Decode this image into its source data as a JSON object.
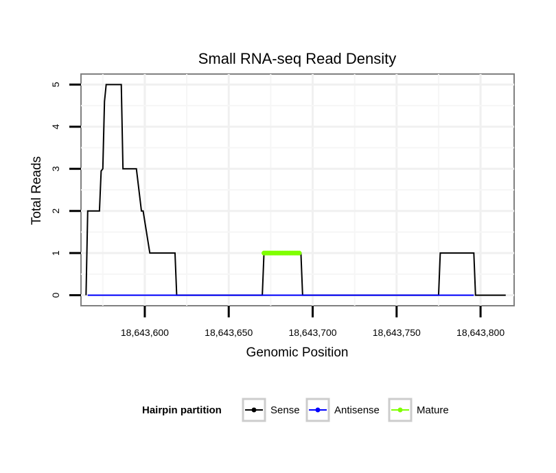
{
  "chart_data": {
    "type": "line",
    "title": "Small RNA-seq Read Density",
    "xlabel": "Genomic Position",
    "ylabel": "Total Reads",
    "xlim": [
      18643562,
      18643820
    ],
    "ylim": [
      -0.25,
      5.25
    ],
    "x_ticks": [
      18643600,
      18643650,
      18643700,
      18643750,
      18643800
    ],
    "x_tick_labels": [
      "18,643,600",
      "18,643,650",
      "18,643,700",
      "18,643,750",
      "18,643,800"
    ],
    "y_ticks": [
      0,
      1,
      2,
      3,
      4,
      5
    ],
    "y_tick_labels": [
      "0",
      "1",
      "2",
      "3",
      "4",
      "5"
    ],
    "grid": true,
    "legend": {
      "title": "Hairpin partition",
      "placement": "bottom",
      "entries": [
        {
          "name": "Sense",
          "color": "#000000"
        },
        {
          "name": "Antisense",
          "color": "#0000ff"
        },
        {
          "name": "Mature",
          "color": "#7fff00"
        }
      ]
    },
    "series": [
      {
        "name": "Sense",
        "color": "#000000",
        "x": [
          18643565,
          18643566,
          18643567,
          18643573,
          18643574,
          18643575,
          18643576,
          18643577,
          18643578,
          18643586,
          18643587,
          18643594,
          18643595,
          18643598,
          18643599,
          18643603,
          18643618,
          18643619,
          18643670,
          18643671,
          18643693,
          18643694,
          18643775,
          18643776,
          18643796,
          18643797,
          18643815
        ],
        "values": [
          0,
          2,
          2,
          2,
          2.95,
          3,
          4.6,
          5,
          5,
          5,
          3,
          3,
          3,
          2,
          2,
          1,
          1,
          0,
          0,
          1,
          1,
          0,
          0,
          1,
          1,
          0,
          0
        ]
      },
      {
        "name": "Antisense",
        "color": "#0000ff",
        "x": [
          18643566,
          18643618,
          18643671,
          18643693,
          18643776,
          18643796
        ],
        "values": [
          0,
          0,
          0,
          0,
          0,
          0
        ]
      },
      {
        "name": "Mature",
        "color": "#7fff00",
        "x": [
          18643671,
          18643672,
          18643673,
          18643674,
          18643675,
          18643676,
          18643677,
          18643678,
          18643679,
          18643680,
          18643681,
          18643682,
          18643683,
          18643684,
          18643685,
          18643686,
          18643687,
          18643688,
          18643689,
          18643690,
          18643691,
          18643692
        ],
        "values": [
          1,
          1,
          1,
          1,
          1,
          1,
          1,
          1,
          1,
          1,
          1,
          1,
          1,
          1,
          1,
          1,
          1,
          1,
          1,
          1,
          1,
          1
        ]
      }
    ]
  }
}
